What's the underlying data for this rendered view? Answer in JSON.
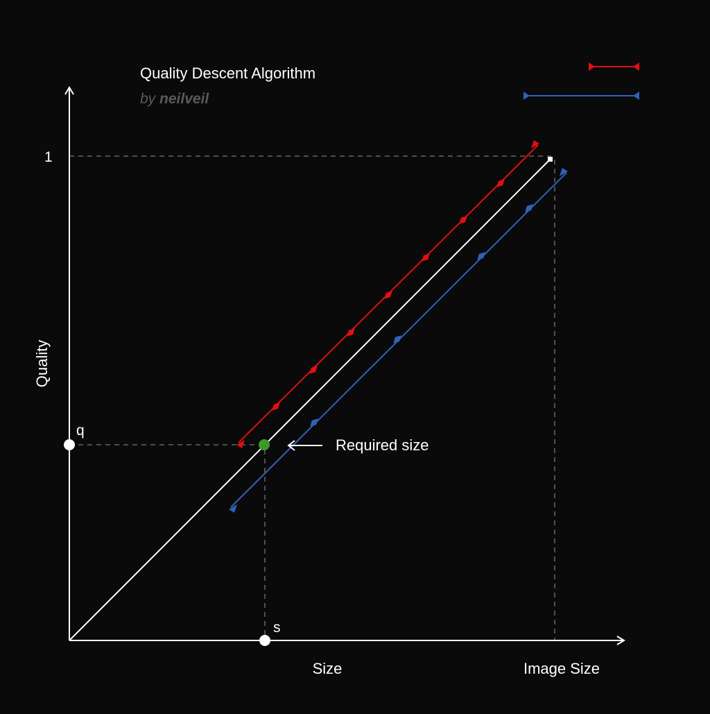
{
  "title": "Quality Descent Algorithm",
  "byline": {
    "prefix": "by ",
    "author": "neilveil"
  },
  "axes": {
    "x_label": "Size",
    "x_end_label": "Image Size",
    "y_label": "Quality",
    "y_top_label": "1"
  },
  "points": {
    "q_label": "q",
    "s_label": "s"
  },
  "annotation": {
    "text": "Required size"
  },
  "colors": {
    "background": "#0a0a0a",
    "axis": "#ffffff",
    "guide": "#777777",
    "diagonal": "#ffffff",
    "red_path": "#e01010",
    "blue_path": "#2f62b8",
    "required_point": "#3a9a2a",
    "byline": "#5a5a5a"
  }
}
